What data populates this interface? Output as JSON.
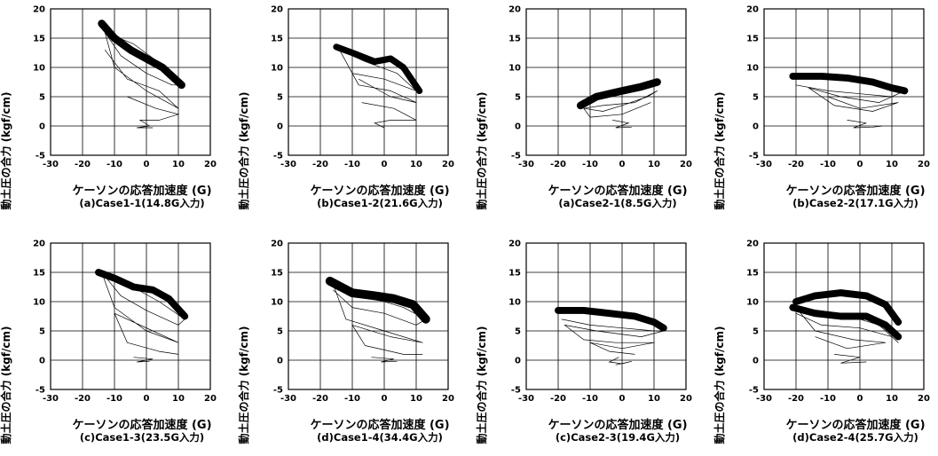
{
  "chart_data": [
    {
      "type": "line",
      "caption": "(a)Case1-1(14.8G入力)",
      "xlabel": "ケーソンの応答加速度 (G)",
      "ylabel": "動土圧の合力 (kgf/cm)",
      "xlim": [
        -30,
        20
      ],
      "ylim": [
        -5,
        20
      ],
      "xticks": [
        "-30",
        "-20",
        "-10",
        "0",
        "10",
        "20"
      ],
      "yticks": [
        "-5",
        "0",
        "5",
        "10",
        "15",
        "20"
      ],
      "grid": true,
      "band": [
        [
          -14,
          17.5
        ],
        [
          -10,
          15
        ],
        [
          -5,
          13
        ],
        [
          0,
          11.5
        ],
        [
          5,
          10
        ],
        [
          11,
          7
        ]
      ],
      "band_width": 1.3,
      "loops": [
        [
          -13,
          16
        ],
        [
          -8,
          12
        ],
        [
          0,
          9
        ],
        [
          8,
          7
        ],
        [
          11,
          7
        ],
        [
          6,
          10
        ],
        [
          -4,
          14
        ],
        [
          -13,
          16
        ],
        [
          -10,
          10
        ],
        [
          0,
          6
        ],
        [
          10,
          3
        ],
        [
          4,
          6
        ],
        [
          -6,
          8
        ],
        [
          -13,
          13
        ]
      ],
      "tail": [
        [
          -6,
          5
        ],
        [
          3,
          3
        ],
        [
          10,
          2
        ],
        [
          4,
          1
        ],
        [
          -2,
          1
        ],
        [
          1,
          0
        ],
        [
          -3,
          -0.3
        ],
        [
          2,
          -0.3
        ]
      ]
    },
    {
      "type": "line",
      "caption": "(b)Case1-2(21.6G入力)",
      "xlabel": "ケーソンの応答加速度 (G)",
      "ylabel": "動土圧の合力 (kgf/cm)",
      "xlim": [
        -30,
        20
      ],
      "ylim": [
        -5,
        20
      ],
      "xticks": [
        "-30",
        "-20",
        "-10",
        "0",
        "10",
        "20"
      ],
      "yticks": [
        "-5",
        "0",
        "5",
        "10",
        "15",
        "20"
      ],
      "grid": true,
      "band": [
        [
          -15,
          13.5
        ],
        [
          -10,
          12.5
        ],
        [
          -3,
          11
        ],
        [
          2,
          11.5
        ],
        [
          6,
          10
        ],
        [
          11,
          6
        ]
      ],
      "band_width": 1.1,
      "loops": [
        [
          -14,
          13
        ],
        [
          -10,
          9
        ],
        [
          0,
          8
        ],
        [
          10,
          6
        ],
        [
          4,
          9
        ],
        [
          -6,
          11
        ],
        [
          -14,
          13
        ],
        [
          -8,
          7
        ],
        [
          2,
          6
        ],
        [
          10,
          4
        ],
        [
          2,
          5
        ],
        [
          -8,
          8
        ]
      ],
      "tail": [
        [
          -7,
          4
        ],
        [
          3,
          3
        ],
        [
          10,
          1
        ],
        [
          2,
          1
        ],
        [
          -3,
          0.5
        ],
        [
          0,
          -0.3
        ]
      ]
    },
    {
      "type": "line",
      "caption": "(a)Case2-1(8.5G入力)",
      "xlabel": "ケーソンの応答加速度 (G)",
      "ylabel": "動土圧の合力 (kgf/cm)",
      "xlim": [
        -30,
        20
      ],
      "ylim": [
        -5,
        20
      ],
      "xticks": [
        "-30",
        "-20",
        "-10",
        "0",
        "10",
        "20"
      ],
      "yticks": [
        "-5",
        "0",
        "5",
        "10",
        "15",
        "20"
      ],
      "grid": true,
      "band": [
        [
          -13,
          3.5
        ],
        [
          -8,
          5
        ],
        [
          0,
          6
        ],
        [
          6,
          6.7
        ],
        [
          11,
          7.5
        ]
      ],
      "band_width": 1.3,
      "loops": [
        [
          -12,
          3
        ],
        [
          -6,
          2.5
        ],
        [
          0,
          3.5
        ],
        [
          8,
          5
        ],
        [
          11,
          6
        ],
        [
          4,
          4
        ],
        [
          -6,
          3.5
        ],
        [
          -12,
          3
        ],
        [
          -10,
          1.5
        ],
        [
          0,
          2
        ],
        [
          9,
          4
        ]
      ],
      "tail": [
        [
          -3,
          1
        ],
        [
          2,
          0.5
        ],
        [
          -2,
          -0.3
        ],
        [
          3,
          -0.2
        ]
      ]
    },
    {
      "type": "line",
      "caption": "(b)Case2-2(17.1G入力)",
      "xlabel": "ケーソンの応答加速度 (G)",
      "ylabel": "動土圧の合力 (kgf/cm)",
      "xlim": [
        -30,
        20
      ],
      "ylim": [
        -5,
        20
      ],
      "xticks": [
        "-30",
        "-20",
        "-10",
        "0",
        "10",
        "20"
      ],
      "yticks": [
        "-5",
        "0",
        "5",
        "10",
        "15",
        "20"
      ],
      "grid": true,
      "band": [
        [
          -21,
          8.5
        ],
        [
          -12,
          8.5
        ],
        [
          -4,
          8.2
        ],
        [
          4,
          7.5
        ],
        [
          10,
          6.5
        ],
        [
          14,
          6
        ]
      ],
      "band_width": 1.2,
      "loops": [
        [
          -20,
          7
        ],
        [
          -10,
          6
        ],
        [
          0,
          5.5
        ],
        [
          10,
          5
        ],
        [
          14,
          6
        ],
        [
          6,
          4
        ],
        [
          -6,
          5
        ],
        [
          -16,
          6.5
        ],
        [
          -8,
          3.5
        ],
        [
          4,
          2.5
        ],
        [
          12,
          4
        ],
        [
          0,
          3
        ],
        [
          -10,
          5
        ]
      ],
      "tail": [
        [
          -4,
          1
        ],
        [
          2,
          0.5
        ],
        [
          -2,
          -0.3
        ],
        [
          4,
          -0.2
        ],
        [
          7,
          0
        ]
      ]
    },
    {
      "type": "line",
      "caption": "(c)Case1-3(23.5G入力)",
      "xlabel": "ケーソンの応答加速度 (G)",
      "ylabel": "動土圧の合力 (kgf/cm)",
      "xlim": [
        -30,
        20
      ],
      "ylim": [
        -5,
        20
      ],
      "xticks": [
        "-30",
        "-20",
        "-10",
        "0",
        "10",
        "20"
      ],
      "yticks": [
        "-5",
        "0",
        "5",
        "10",
        "15",
        "20"
      ],
      "grid": true,
      "band": [
        [
          -15,
          15
        ],
        [
          -10,
          14
        ],
        [
          -4,
          12.5
        ],
        [
          2,
          12
        ],
        [
          7,
          10.5
        ],
        [
          12,
          7.5
        ]
      ],
      "band_width": 1.2,
      "loops": [
        [
          -14,
          15
        ],
        [
          -8,
          11
        ],
        [
          0,
          8.5
        ],
        [
          10,
          6
        ],
        [
          12,
          7
        ],
        [
          4,
          10
        ],
        [
          -6,
          13
        ],
        [
          -14,
          15
        ],
        [
          -10,
          9
        ],
        [
          0,
          5
        ],
        [
          10,
          3
        ],
        [
          2,
          5
        ],
        [
          -10,
          8
        ],
        [
          -6,
          3
        ],
        [
          4,
          1.5
        ],
        [
          10,
          1
        ]
      ],
      "tail": [
        [
          -4,
          0.5
        ],
        [
          2,
          0.2
        ],
        [
          -3,
          -0.3
        ],
        [
          1,
          -0.2
        ]
      ]
    },
    {
      "type": "line",
      "caption": "(d)Case1-4(34.4G入力)",
      "xlabel": "ケーソンの応答加速度 (G)",
      "ylabel": "動土圧の合力 (kgf/cm)",
      "xlim": [
        -30,
        20
      ],
      "ylim": [
        -5,
        20
      ],
      "xticks": [
        "-30",
        "-20",
        "-10",
        "0",
        "10",
        "20"
      ],
      "yticks": [
        "-5",
        "0",
        "5",
        "10",
        "15",
        "20"
      ],
      "grid": true,
      "band": [
        [
          -17,
          13.5
        ],
        [
          -10,
          11.5
        ],
        [
          -3,
          11
        ],
        [
          3,
          10.5
        ],
        [
          9,
          9.5
        ],
        [
          13,
          7
        ]
      ],
      "band_width": 1.5,
      "loops": [
        [
          -16,
          12
        ],
        [
          -10,
          9
        ],
        [
          0,
          8
        ],
        [
          10,
          6
        ],
        [
          13,
          7
        ],
        [
          6,
          9
        ],
        [
          -6,
          11
        ],
        [
          -16,
          13
        ],
        [
          -12,
          7
        ],
        [
          0,
          5
        ],
        [
          12,
          3
        ],
        [
          2,
          4
        ],
        [
          -10,
          6
        ],
        [
          -6,
          2.5
        ],
        [
          6,
          1
        ],
        [
          12,
          1
        ]
      ],
      "tail": [
        [
          -4,
          0.5
        ],
        [
          3,
          0.2
        ],
        [
          -1,
          -0.3
        ],
        [
          4,
          -0.2
        ]
      ]
    },
    {
      "type": "line",
      "caption": "(c)Case2-3(19.4G入力)",
      "xlabel": "ケーソンの応答加速度 (G)",
      "ylabel": "動土圧の合力 (kgf/cm)",
      "xlim": [
        -30,
        20
      ],
      "ylim": [
        -5,
        20
      ],
      "xticks": [
        "-30",
        "-20",
        "-10",
        "0",
        "10",
        "20"
      ],
      "yticks": [
        "-5",
        "0",
        "5",
        "10",
        "15",
        "20"
      ],
      "grid": true,
      "band": [
        [
          -20,
          8.5
        ],
        [
          -12,
          8.5
        ],
        [
          -4,
          8
        ],
        [
          4,
          7.5
        ],
        [
          10,
          6.5
        ],
        [
          13,
          5.5
        ]
      ],
      "band_width": 1.2,
      "loops": [
        [
          -19,
          7
        ],
        [
          -10,
          6
        ],
        [
          0,
          5.5
        ],
        [
          10,
          5
        ],
        [
          13,
          5
        ],
        [
          6,
          4
        ],
        [
          -8,
          5
        ],
        [
          -18,
          6
        ],
        [
          -12,
          3.5
        ],
        [
          -2,
          3
        ],
        [
          10,
          3
        ],
        [
          0,
          2
        ],
        [
          -10,
          3
        ],
        [
          -4,
          1.5
        ],
        [
          4,
          1
        ]
      ],
      "tail": [
        [
          -1,
          0.5
        ],
        [
          -4,
          -0.3
        ],
        [
          0,
          -0.6
        ],
        [
          3,
          -0.2
        ],
        [
          -2,
          -0.8
        ]
      ]
    },
    {
      "type": "line",
      "caption": "(d)Case2-4(25.7G入力)",
      "xlabel": "ケーソンの応答加速度 (G)",
      "ylabel": "動土圧の合力 (kgf/cm)",
      "xlim": [
        -30,
        20
      ],
      "ylim": [
        -5,
        20
      ],
      "xticks": [
        "-30",
        "-20",
        "-10",
        "0",
        "10",
        "20"
      ],
      "yticks": [
        "-5",
        "0",
        "5",
        "10",
        "15",
        "20"
      ],
      "grid": true,
      "band": [
        [
          -21,
          9
        ],
        [
          -14,
          8
        ],
        [
          -6,
          7.5
        ],
        [
          2,
          7.5
        ],
        [
          8,
          6
        ],
        [
          12,
          4
        ]
      ],
      "band_width": 1.2,
      "band2": [
        [
          -20,
          10
        ],
        [
          -14,
          11
        ],
        [
          -6,
          11.5
        ],
        [
          2,
          11
        ],
        [
          8,
          9.5
        ],
        [
          12,
          6.5
        ]
      ],
      "loops": [
        [
          -20,
          8
        ],
        [
          -12,
          6
        ],
        [
          0,
          5.5
        ],
        [
          10,
          4
        ],
        [
          12,
          3
        ],
        [
          6,
          6
        ],
        [
          -6,
          8
        ],
        [
          -20,
          9
        ],
        [
          -14,
          5
        ],
        [
          -2,
          3.5
        ],
        [
          8,
          3
        ],
        [
          -4,
          2
        ],
        [
          -14,
          4
        ]
      ],
      "tail": [
        [
          -8,
          1
        ],
        [
          0,
          0.5
        ],
        [
          -6,
          -0.5
        ],
        [
          2,
          -0.3
        ]
      ]
    }
  ]
}
